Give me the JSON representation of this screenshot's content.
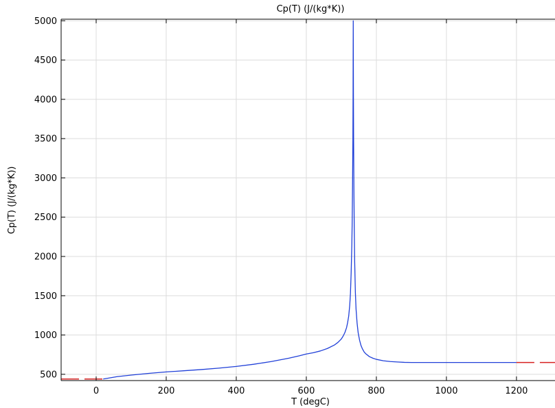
{
  "chart_data": {
    "type": "line",
    "title": "Cp(T) (J/(kg*K))",
    "xlabel": "T (degC)",
    "ylabel": "Cp(T) (J/(kg*K))",
    "xlim": [
      -100,
      1310
    ],
    "ylim": [
      420,
      5020
    ],
    "xticks": [
      0,
      200,
      400,
      600,
      800,
      1000,
      1200
    ],
    "yticks": [
      500,
      1000,
      1500,
      2000,
      2500,
      3000,
      3500,
      4000,
      4500,
      5000
    ],
    "grid": true,
    "series": [
      {
        "style": "solid",
        "color": "#1f3fd8",
        "x": [
          20,
          60,
          100,
          150,
          200,
          250,
          300,
          350,
          400,
          450,
          500,
          550,
          580,
          600,
          620,
          640,
          660,
          680,
          690,
          700,
          705,
          710,
          715,
          718,
          721,
          724,
          726,
          728,
          730,
          731,
          732,
          733,
          733.5,
          734,
          734.5,
          735,
          736,
          737,
          738,
          740,
          742,
          745,
          748,
          752,
          756,
          760,
          765,
          770,
          780,
          790,
          800,
          820,
          840,
          860,
          880,
          900,
          950,
          1000,
          1100,
          1200
        ],
        "y": [
          440,
          470,
          490,
          512,
          530,
          545,
          560,
          578,
          600,
          628,
          662,
          705,
          735,
          758,
          775,
          797,
          828,
          872,
          905,
          950,
          985,
          1030,
          1095,
          1160,
          1240,
          1380,
          1530,
          1790,
          2150,
          2450,
          2900,
          3500,
          4100,
          5000,
          4100,
          3500,
          2800,
          2300,
          1950,
          1550,
          1330,
          1150,
          1030,
          935,
          868,
          825,
          785,
          760,
          725,
          705,
          690,
          672,
          662,
          657,
          652,
          650,
          650,
          650,
          650,
          650
        ]
      },
      {
        "style": "dashed",
        "color": "#d62020",
        "x": [
          -100,
          20
        ],
        "y": [
          440,
          440
        ]
      },
      {
        "style": "dashed",
        "color": "#d62020",
        "x": [
          1200,
          1310
        ],
        "y": [
          650,
          650
        ]
      }
    ]
  }
}
